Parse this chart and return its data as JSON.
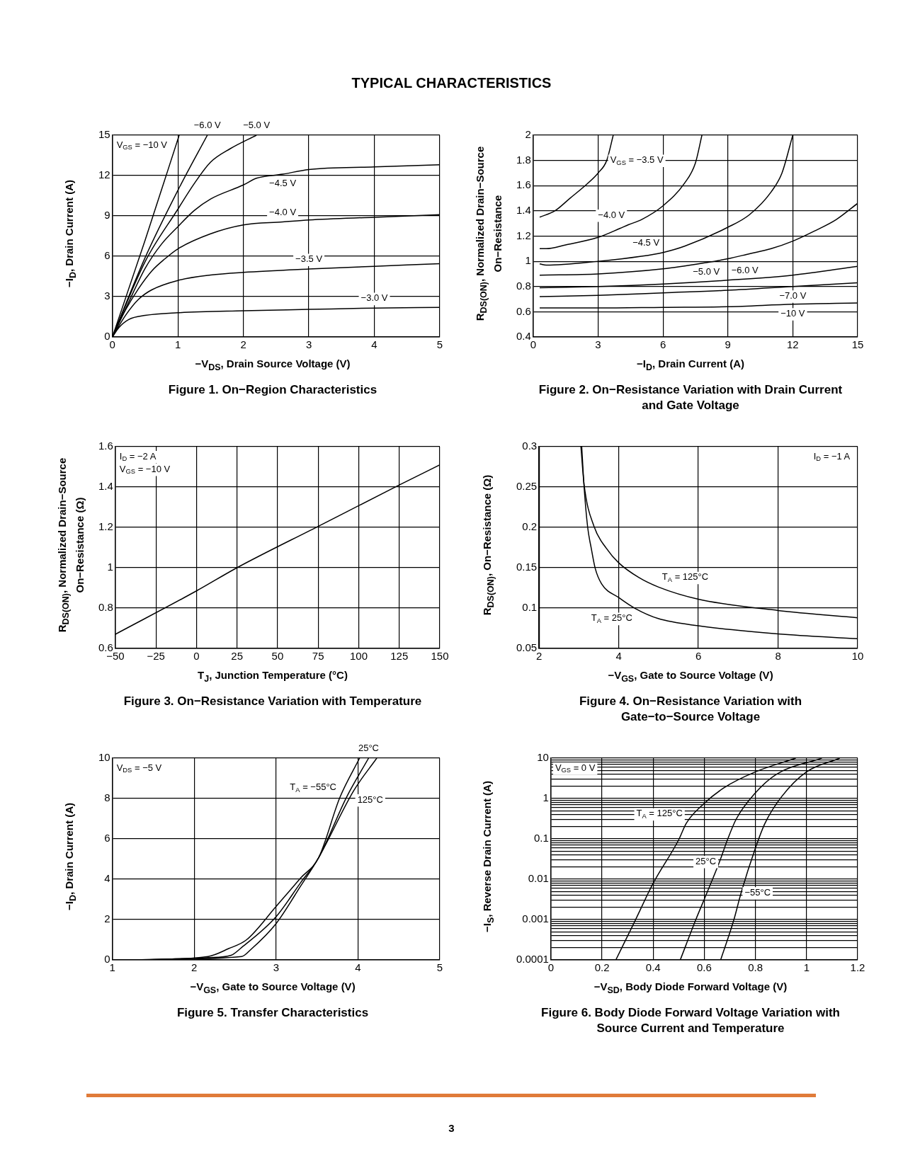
{
  "chart_data": [
    {
      "type": "other",
      "title": "TYPICAL CHARACTERISTICS",
      "annotations": [
        "3"
      ]
    },
    {
      "type": "line",
      "title": "Figure 1. On−Region Characteristics",
      "xlabel": "−V$_{DS}$, Drain Source Voltage (V)",
      "ylabel": "−I$_{D}$, Drain Current (A)",
      "xlim": [
        0,
        5
      ],
      "ylim": [
        0,
        15
      ],
      "xticks": [
        0,
        1,
        2,
        3,
        4,
        5
      ],
      "yticks": [
        0,
        3,
        6,
        9,
        12,
        15
      ],
      "grid": true,
      "series": [
        {
          "color": "#000000",
          "x": [
            0,
            0.1,
            0.25,
            0.5,
            1,
            2,
            3,
            4,
            5
          ],
          "values": [
            0,
            0.7,
            1.3,
            1.6,
            1.8,
            1.95,
            2.05,
            2.15,
            2.2
          ]
        },
        {
          "color": "#000000",
          "x": [
            0,
            0.2,
            0.4,
            0.6,
            1,
            1.5,
            2,
            3,
            4,
            5
          ],
          "values": [
            0,
            1.6,
            2.8,
            3.5,
            4.2,
            4.6,
            4.8,
            5.05,
            5.25,
            5.45
          ]
        },
        {
          "color": "#000000",
          "x": [
            0,
            0.2,
            0.4,
            0.6,
            0.8,
            1,
            1.5,
            2,
            2.6,
            3,
            4,
            5
          ],
          "values": [
            0,
            2.0,
            3.6,
            4.9,
            5.8,
            6.55,
            7.67,
            8.33,
            8.55,
            8.7,
            8.9,
            9.09
          ]
        },
        {
          "color": "#000000",
          "x": [
            0,
            0.25,
            0.5,
            0.75,
            1,
            1.25,
            1.5,
            2,
            2.2,
            2.6,
            3,
            4,
            5
          ],
          "values": [
            0,
            2.6,
            5.1,
            6.9,
            8.2,
            9.4,
            10.26,
            11.3,
            11.8,
            12.1,
            12.45,
            12.64,
            12.8
          ]
        },
        {
          "color": "#000000",
          "x": [
            0,
            0.5,
            1,
            1.25,
            1.5,
            1.8,
            2.2
          ],
          "values": [
            0,
            5.6,
            9.5,
            11.4,
            13.0,
            14.0,
            15
          ]
        },
        {
          "color": "#000000",
          "x": [
            0,
            0.5,
            1,
            1.45
          ],
          "values": [
            0,
            5.9,
            10.9,
            15
          ]
        },
        {
          "color": "#000000",
          "x": [
            0,
            0.5,
            1.02
          ],
          "values": [
            0,
            7.2,
            15
          ]
        }
      ],
      "annotations": [
        "V$_{GS}$ = −10 V",
        {
          "text": "−5.0 V",
          "x": 2.2,
          "y": 15
        },
        {
          "text": "−6.0 V",
          "x": 1.45,
          "y": 15
        },
        {
          "text": "−4.5 V",
          "x": 2.6,
          "y": 12.1
        },
        {
          "text": "−4.0 V",
          "x": 2.6,
          "y": 8.55
        },
        {
          "text": "−3.5 V",
          "x": 3,
          "y": 5.05
        },
        {
          "text": "−3.0 V",
          "x": 4,
          "y": 2.15
        }
      ]
    },
    {
      "type": "line",
      "title": "Figure 2. On−Resistance Variation with Drain Current and Gate Voltage",
      "xlabel": "−I$_{D}$, Drain Current (A)",
      "ylabel": "R$_{DS(ON)}$, Normalized Drain−Source On−Resistance",
      "xlim": [
        0,
        15
      ],
      "ylim": [
        0.4,
        2
      ],
      "xticks": [
        0,
        3,
        6,
        9,
        12,
        15
      ],
      "yticks": [
        0.4,
        0.6,
        0.8,
        1,
        1.2,
        1.4,
        1.6,
        1.8,
        2
      ],
      "grid": true,
      "series": [
        {
          "color": "#000000",
          "x": [
            0.3,
            1,
            1.7,
            2.4,
            3,
            3.4,
            3.7
          ],
          "values": [
            1.35,
            1.4,
            1.5,
            1.6,
            1.7,
            1.8,
            2
          ]
        },
        {
          "color": "#000000",
          "x": [
            0.3,
            0.6,
            1.5,
            3,
            4,
            4.4,
            5,
            6,
            7,
            7.5,
            7.8
          ],
          "values": [
            1.1,
            1.1,
            1.13,
            1.19,
            1.26,
            1.29,
            1.33,
            1.44,
            1.62,
            1.78,
            2
          ]
        },
        {
          "color": "#000000",
          "x": [
            0.3,
            0.6,
            3,
            5,
            6,
            7,
            9,
            10,
            11,
            11.5,
            12
          ],
          "values": [
            0.98,
            0.97,
            1.0,
            1.04,
            1.07,
            1.12,
            1.27,
            1.37,
            1.55,
            1.7,
            2
          ]
        },
        {
          "color": "#000000",
          "x": [
            0.3,
            3,
            6,
            8,
            9,
            10,
            11,
            12,
            13,
            14,
            15
          ],
          "values": [
            0.89,
            0.9,
            0.94,
            0.99,
            1.02,
            1.06,
            1.1,
            1.16,
            1.24,
            1.33,
            1.46
          ]
        },
        {
          "color": "#000000",
          "x": [
            0.3,
            3,
            6,
            9,
            12,
            15
          ],
          "values": [
            0.79,
            0.8,
            0.82,
            0.85,
            0.89,
            0.96
          ]
        },
        {
          "color": "#000000",
          "x": [
            0.3,
            3,
            6,
            9,
            12,
            15
          ],
          "values": [
            0.72,
            0.73,
            0.75,
            0.77,
            0.8,
            0.83
          ]
        },
        {
          "color": "#000000",
          "x": [
            0.3,
            3,
            6,
            9,
            12,
            15
          ],
          "values": [
            0.63,
            0.63,
            0.635,
            0.64,
            0.66,
            0.67
          ]
        }
      ],
      "annotations": [
        {
          "text": "V$_{GS}$ = −3.5 V",
          "x": 3.4,
          "y": 1.8
        },
        {
          "text": "−4.0 V",
          "x": 4.4,
          "y": 1.29
        },
        {
          "text": "−4.5 V",
          "x": 6,
          "y": 1.07
        },
        {
          "text": "−5.0 V",
          "x": 8,
          "y": 0.99
        },
        {
          "text": "−6.0 V",
          "x": 9,
          "y": 0.85
        },
        {
          "text": "−7.0 V",
          "x": 12,
          "y": 0.8
        },
        {
          "text": "−10 V",
          "x": 12,
          "y": 0.66
        }
      ]
    },
    {
      "type": "line",
      "title": "Figure 3. On−Resistance Variation with Temperature",
      "xlabel": "T$_{J}$, Junction Temperature (°C)",
      "ylabel": "R$_{DS(ON)}$, Normalized Drain−Source On−Resistance (Ω)",
      "xlim": [
        -50,
        150
      ],
      "ylim": [
        0.6,
        1.6
      ],
      "xticks": [
        -50,
        -25,
        0,
        25,
        50,
        75,
        100,
        125,
        150
      ],
      "yticks": [
        0.6,
        0.8,
        1,
        1.2,
        1.4,
        1.6
      ],
      "grid": true,
      "series": [
        {
          "color": "#000000",
          "x": [
            -50,
            0,
            25,
            75,
            125,
            150
          ],
          "values": [
            0.67,
            0.885,
            1.0,
            1.205,
            1.41,
            1.51
          ]
        }
      ],
      "annotations": [
        "I$_{D}$ = −2 A",
        "V$_{GS}$ = −10 V"
      ]
    },
    {
      "type": "line",
      "title": "Figure 4. On−Resistance Variation with Gate−to−Source Voltage",
      "xlabel": "−V$_{GS}$, Gate to Source Voltage (V)",
      "ylabel": "R$_{DS(ON)}$, On−Resistance (Ω)",
      "xlim": [
        2,
        10
      ],
      "ylim": [
        0.05,
        0.3
      ],
      "xticks": [
        2,
        4,
        6,
        8,
        10
      ],
      "yticks": [
        0.05,
        0.1,
        0.15,
        0.2,
        0.25,
        0.3
      ],
      "grid": true,
      "series": [
        {
          "color": "#000000",
          "x": [
            3.07,
            3.13,
            3.22,
            3.31,
            3.41,
            3.57,
            4,
            4.43,
            4.99,
            6,
            8,
            10
          ],
          "values": [
            0.3,
            0.25,
            0.2,
            0.174,
            0.149,
            0.13,
            0.113,
            0.099,
            0.087,
            0.078,
            0.068,
            0.062
          ]
        },
        {
          "color": "#000000",
          "x": [
            3.05,
            3.13,
            3.38,
            3.69,
            4,
            4.5,
            5,
            6,
            8,
            10
          ],
          "values": [
            0.3,
            0.253,
            0.201,
            0.174,
            0.156,
            0.138,
            0.126,
            0.111,
            0.097,
            0.088
          ]
        }
      ],
      "annotations": [
        "I$_{D}$ = −1 A",
        {
          "text": "T$_{A}$ = 125°C",
          "x": 5,
          "y": 0.126
        },
        {
          "text": "T$_{A}$ = 25°C",
          "x": 4.43,
          "y": 0.099
        }
      ]
    },
    {
      "type": "line",
      "title": "Figure 5. Transfer Characteristics",
      "xlabel": "−V$_{GS}$, Gate to Source Voltage (V)",
      "ylabel": "−I$_{D}$, Drain Current (A)",
      "xlim": [
        1,
        5
      ],
      "ylim": [
        0,
        10
      ],
      "xticks": [
        1,
        2,
        3,
        4,
        5
      ],
      "yticks": [
        0,
        2,
        4,
        6,
        8,
        10
      ],
      "grid": true,
      "series": [
        {
          "color": "#000000",
          "x": [
            1.3,
            2.17,
            2.42,
            2.64,
            3,
            3.3,
            3.52,
            3.78,
            4.02
          ],
          "values": [
            0,
            0.17,
            0.56,
            1.0,
            2.65,
            4.06,
            5.07,
            8.06,
            10
          ]
        },
        {
          "color": "#000000",
          "x": [
            1.3,
            2.17,
            2.45,
            2.58,
            3,
            3.3,
            3.52,
            3.86,
            4.13
          ],
          "values": [
            0,
            0.11,
            0.23,
            0.62,
            2.14,
            3.83,
            5.07,
            8.06,
            10
          ]
        },
        {
          "color": "#000000",
          "x": [
            1.3,
            2.58,
            2.69,
            3,
            3.3,
            3.52,
            3.95,
            4.23
          ],
          "values": [
            0,
            0.17,
            0.51,
            1.8,
            3.66,
            5.07,
            8.4,
            10
          ]
        }
      ],
      "annotations": [
        "V$_{DS}$ = −5 V",
        {
          "text": "T$_{A}$ = −55°C",
          "x": 3.78,
          "y": 8.06
        },
        {
          "text": "25°C",
          "x": 4.13,
          "y": 10
        },
        {
          "text": "125°C",
          "x": 3.95,
          "y": 8.4
        }
      ]
    },
    {
      "type": "line",
      "title": "Figure 6. Body Diode Forward Voltage Variation with Source Current and Temperature",
      "xlabel": "−V$_{SD}$, Body Diode Forward Voltage (V)",
      "ylabel": "−I$_{S}$, Reverse Drain Current (A)",
      "log": "y",
      "xlim": [
        0,
        1.2
      ],
      "ylim": [
        0.0001,
        10
      ],
      "xticks": [
        0,
        0.2,
        0.4,
        0.6,
        0.8,
        1,
        1.2
      ],
      "yticks": [
        0.0001,
        {
          "value": 0.0002,
          "label": null
        },
        {
          "value": 0.0003,
          "label": null
        },
        {
          "value": 0.0004,
          "label": null
        },
        {
          "value": 0.0005,
          "label": null
        },
        {
          "value": 0.0006,
          "label": null
        },
        {
          "value": 0.0007,
          "label": null
        },
        {
          "value": 0.0008,
          "label": null
        },
        {
          "value": 0.0009,
          "label": null
        },
        0.001,
        {
          "value": 0.002,
          "label": null
        },
        {
          "value": 0.003,
          "label": null
        },
        {
          "value": 0.004,
          "label": null
        },
        {
          "value": 0.005,
          "label": null
        },
        {
          "value": 0.006,
          "label": null
        },
        {
          "value": 0.007,
          "label": null
        },
        {
          "value": 0.008,
          "label": null
        },
        {
          "value": 0.009,
          "label": null
        },
        0.01,
        {
          "value": 0.02,
          "label": null
        },
        {
          "value": 0.03,
          "label": null
        },
        {
          "value": 0.04,
          "label": null
        },
        {
          "value": 0.05,
          "label": null
        },
        {
          "value": 0.06,
          "label": null
        },
        {
          "value": 0.07,
          "label": null
        },
        {
          "value": 0.08,
          "label": null
        },
        {
          "value": 0.09,
          "label": null
        },
        0.1,
        {
          "value": 0.2,
          "label": null
        },
        {
          "value": 0.3,
          "label": null
        },
        {
          "value": 0.4,
          "label": null
        },
        {
          "value": 0.5,
          "label": null
        },
        {
          "value": 0.6,
          "label": null
        },
        {
          "value": 0.7,
          "label": null
        },
        {
          "value": 0.8,
          "label": null
        },
        {
          "value": 0.9,
          "label": null
        },
        1,
        {
          "value": 2,
          "label": null
        },
        {
          "value": 3,
          "label": null
        },
        {
          "value": 4,
          "label": null
        },
        {
          "value": 5,
          "label": null
        },
        {
          "value": 6,
          "label": null
        },
        {
          "value": 7,
          "label": null
        },
        {
          "value": 8,
          "label": null
        },
        {
          "value": 9,
          "label": null
        },
        10
      ],
      "grid": true,
      "series": [
        {
          "color": "#000000",
          "x": [
            0.254,
            0.329,
            0.399,
            0.501,
            0.529,
            0.595,
            0.678,
            0.8,
            0.958
          ],
          "values": [
            0.0001,
            0.00093,
            0.0077,
            0.098,
            0.24,
            0.71,
            1.86,
            4.57,
            10
          ]
        },
        {
          "color": "#000000",
          "x": [
            0.506,
            0.567,
            0.6,
            0.66,
            0.692,
            0.725,
            0.795,
            0.883,
            1.06
          ],
          "values": [
            0.0001,
            0.001,
            0.0032,
            0.0275,
            0.1,
            0.31,
            1.27,
            4.0,
            10
          ]
        },
        {
          "color": "#000000",
          "x": [
            0.664,
            0.716,
            0.744,
            0.8,
            0.837,
            0.902,
            1.0,
            1.13
          ],
          "values": [
            0.0001,
            0.001,
            0.0046,
            0.059,
            0.24,
            1.1,
            4.57,
            10
          ]
        }
      ],
      "annotations": [
        "V$_{GS}$ = 0 V",
        {
          "text": "T$_{A}$ = 125°C",
          "x": 0.529,
          "y": 0.24
        },
        {
          "text": "25°C",
          "x": 0.66,
          "y": 0.0275
        },
        {
          "text": "−55°C",
          "x": 0.744,
          "y": 0.0046
        }
      ]
    }
  ]
}
